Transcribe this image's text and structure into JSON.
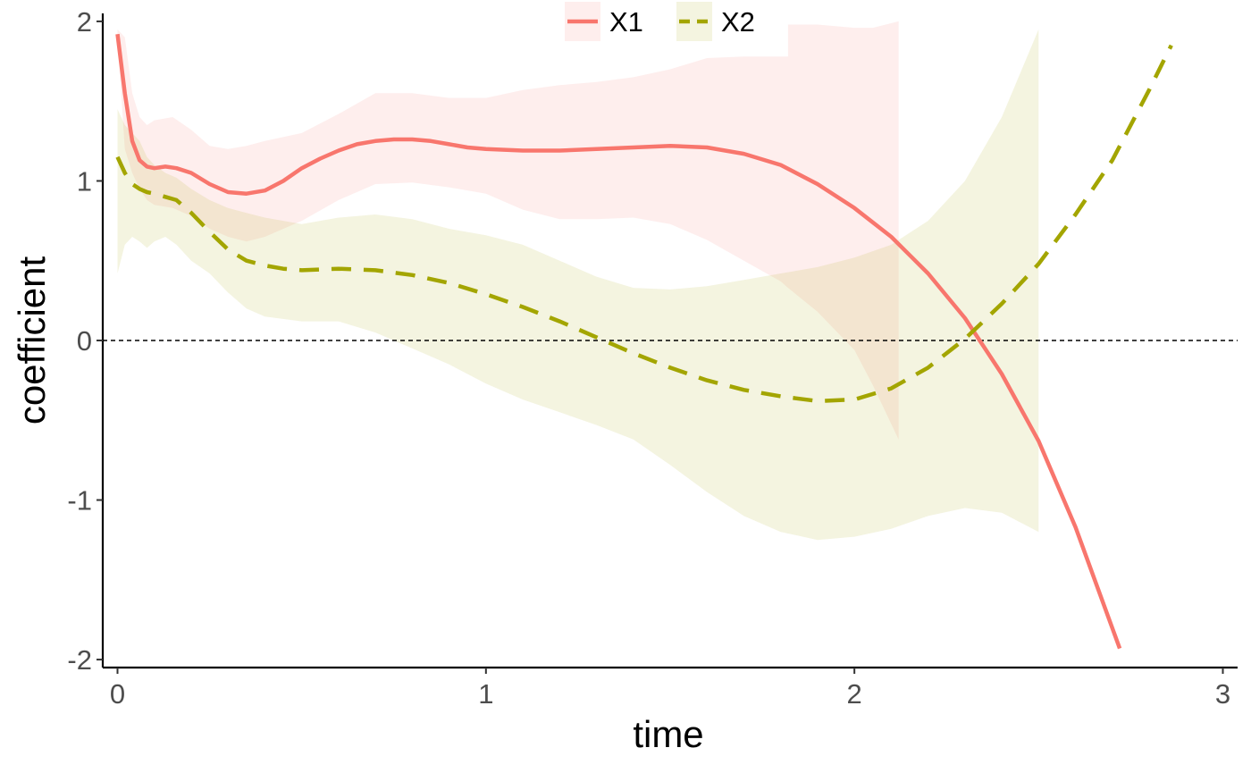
{
  "chart_data": {
    "type": "line",
    "xlabel": "time",
    "ylabel": "coefficient",
    "xlim": [
      -0.04,
      3.04
    ],
    "ylim": [
      -2.05,
      2.05
    ],
    "x_ticks": [
      0,
      1,
      2,
      3
    ],
    "x_tick_labels": [
      "0",
      "1",
      "2",
      "3"
    ],
    "y_ticks": [
      -2,
      -1,
      0,
      1,
      2
    ],
    "y_tick_labels": [
      "-2",
      "-1",
      "0",
      "1",
      "2"
    ],
    "reference_line": {
      "y": 0,
      "style": "dashed",
      "color": "#000000"
    },
    "grid": false,
    "legend_position": "top",
    "series": [
      {
        "name": "X1",
        "color": "#F8766D",
        "linetype": "solid",
        "x": [
          0.0,
          0.02,
          0.04,
          0.06,
          0.08,
          0.1,
          0.13,
          0.16,
          0.2,
          0.25,
          0.3,
          0.35,
          0.4,
          0.45,
          0.5,
          0.55,
          0.6,
          0.65,
          0.7,
          0.75,
          0.8,
          0.85,
          0.9,
          0.95,
          1.0,
          1.1,
          1.2,
          1.3,
          1.4,
          1.5,
          1.6,
          1.7,
          1.8,
          1.9,
          2.0,
          2.1,
          2.2,
          2.3,
          2.4,
          2.5,
          2.6,
          2.72
        ],
        "y": [
          1.92,
          1.55,
          1.25,
          1.13,
          1.09,
          1.08,
          1.09,
          1.08,
          1.05,
          0.98,
          0.93,
          0.92,
          0.94,
          1.0,
          1.08,
          1.14,
          1.19,
          1.23,
          1.25,
          1.26,
          1.26,
          1.25,
          1.23,
          1.21,
          1.2,
          1.19,
          1.19,
          1.2,
          1.21,
          1.22,
          1.21,
          1.17,
          1.1,
          0.98,
          0.83,
          0.65,
          0.42,
          0.14,
          -0.21,
          -0.63,
          -1.17,
          -1.93
        ]
      },
      {
        "name": "X2",
        "color": "#A3A500",
        "linetype": "dashed",
        "x": [
          0.0,
          0.02,
          0.04,
          0.06,
          0.08,
          0.1,
          0.13,
          0.16,
          0.2,
          0.25,
          0.3,
          0.35,
          0.4,
          0.45,
          0.5,
          0.6,
          0.7,
          0.8,
          0.9,
          1.0,
          1.1,
          1.2,
          1.3,
          1.4,
          1.5,
          1.6,
          1.7,
          1.8,
          1.9,
          2.0,
          2.1,
          2.2,
          2.3,
          2.4,
          2.5,
          2.6,
          2.7,
          2.8,
          2.86
        ],
        "y": [
          1.15,
          1.05,
          0.98,
          0.95,
          0.93,
          0.92,
          0.9,
          0.88,
          0.8,
          0.68,
          0.57,
          0.5,
          0.47,
          0.45,
          0.44,
          0.45,
          0.44,
          0.41,
          0.36,
          0.29,
          0.21,
          0.12,
          0.02,
          -0.08,
          -0.17,
          -0.25,
          -0.31,
          -0.35,
          -0.38,
          -0.37,
          -0.3,
          -0.17,
          0.01,
          0.23,
          0.48,
          0.79,
          1.13,
          1.57,
          1.85
        ]
      }
    ],
    "bands": [
      {
        "series": "X1",
        "color": "#F8766D",
        "opacity": 0.12,
        "x": [
          0.0,
          0.02,
          0.04,
          0.06,
          0.08,
          0.1,
          0.15,
          0.2,
          0.25,
          0.3,
          0.35,
          0.4,
          0.5,
          0.6,
          0.7,
          0.8,
          0.9,
          1.0,
          1.1,
          1.2,
          1.3,
          1.4,
          1.5,
          1.6,
          1.7,
          1.8,
          1.82,
          1.82,
          1.9,
          2.0,
          2.05,
          2.12
        ],
        "upper": [
          1.95,
          1.9,
          1.55,
          1.4,
          1.35,
          1.38,
          1.4,
          1.32,
          1.22,
          1.2,
          1.22,
          1.25,
          1.3,
          1.42,
          1.55,
          1.55,
          1.52,
          1.52,
          1.57,
          1.6,
          1.62,
          1.65,
          1.7,
          1.77,
          1.78,
          1.78,
          1.78,
          1.98,
          1.98,
          1.96,
          1.96,
          2.0
        ],
        "lower": [
          1.9,
          1.2,
          1.05,
          0.95,
          0.88,
          0.85,
          0.83,
          0.78,
          0.7,
          0.65,
          0.62,
          0.65,
          0.75,
          0.88,
          0.98,
          0.99,
          0.96,
          0.92,
          0.82,
          0.76,
          0.76,
          0.77,
          0.73,
          0.63,
          0.5,
          0.37,
          0.33,
          0.33,
          0.18,
          -0.06,
          -0.28,
          -0.62
        ]
      },
      {
        "series": "X2",
        "color": "#A3A500",
        "opacity": 0.12,
        "x": [
          0.0,
          0.02,
          0.04,
          0.06,
          0.08,
          0.1,
          0.13,
          0.16,
          0.2,
          0.25,
          0.3,
          0.35,
          0.4,
          0.5,
          0.6,
          0.7,
          0.8,
          0.9,
          1.0,
          1.1,
          1.2,
          1.3,
          1.4,
          1.5,
          1.6,
          1.7,
          1.8,
          1.9,
          2.0,
          2.1,
          2.2,
          2.3,
          2.4,
          2.5
        ],
        "upper": [
          1.45,
          1.35,
          1.3,
          1.25,
          1.15,
          1.1,
          1.05,
          1.02,
          0.95,
          0.88,
          0.83,
          0.8,
          0.77,
          0.73,
          0.77,
          0.79,
          0.76,
          0.7,
          0.66,
          0.6,
          0.5,
          0.4,
          0.33,
          0.32,
          0.34,
          0.38,
          0.42,
          0.46,
          0.52,
          0.6,
          0.75,
          1.0,
          1.4,
          1.95
        ],
        "lower": [
          0.42,
          0.6,
          0.65,
          0.62,
          0.58,
          0.62,
          0.65,
          0.6,
          0.5,
          0.42,
          0.3,
          0.2,
          0.15,
          0.12,
          0.12,
          0.05,
          -0.05,
          -0.15,
          -0.27,
          -0.37,
          -0.45,
          -0.53,
          -0.62,
          -0.78,
          -0.95,
          -1.1,
          -1.2,
          -1.25,
          -1.23,
          -1.18,
          -1.1,
          -1.05,
          -1.08,
          -1.2
        ]
      }
    ]
  }
}
